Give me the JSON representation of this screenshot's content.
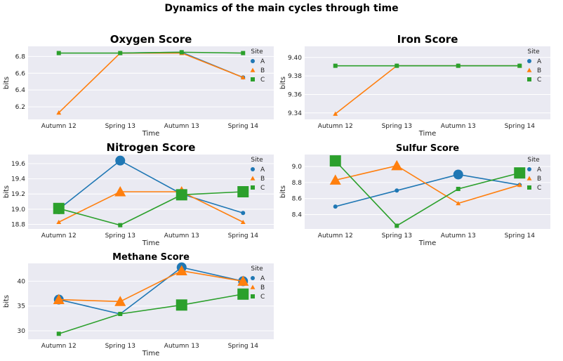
{
  "figure_title": "Dynamics of the main cycles through time",
  "colors": {
    "A": "#1f77b4",
    "B": "#ff7f0e",
    "C": "#2ca02c",
    "panel_bg": "#eaeaf2",
    "grid": "#ffffff"
  },
  "legend_title": "Site",
  "chart_data": [
    {
      "type": "line",
      "title": "Oxygen Score",
      "xlabel": "Time",
      "ylabel": "bits",
      "categories": [
        "Autumn 12",
        "Spring 13",
        "Autumn 13",
        "Spring 14"
      ],
      "ylim": [
        6.05,
        6.92
      ],
      "yticks": [
        6.2,
        6.4,
        6.6,
        6.8
      ],
      "yticklabels": [
        "6.2",
        "6.4",
        "6.6",
        "6.8"
      ],
      "legend": {
        "title": "Site",
        "entries": [
          "A",
          "B",
          "C"
        ],
        "placement": "right"
      },
      "series": [
        {
          "name": "A",
          "values": [
            null,
            6.84,
            6.85,
            6.55
          ],
          "sizes": [
            0,
            3,
            3,
            3
          ]
        },
        {
          "name": "B",
          "values": [
            6.13,
            6.84,
            6.84,
            6.55
          ],
          "sizes": [
            3,
            3,
            3,
            3
          ]
        },
        {
          "name": "C",
          "values": [
            6.84,
            6.84,
            6.85,
            6.84
          ],
          "sizes": [
            3,
            3,
            3,
            3
          ]
        }
      ]
    },
    {
      "type": "line",
      "title": "Iron Score",
      "xlabel": "Time",
      "ylabel": "bits",
      "categories": [
        "Autumn 12",
        "Spring 13",
        "Autumn 13",
        "Spring 14"
      ],
      "ylim": [
        9.333,
        9.412
      ],
      "yticks": [
        9.34,
        9.36,
        9.38,
        9.4
      ],
      "yticklabels": [
        "9.34",
        "9.36",
        "9.38",
        "9.40"
      ],
      "legend": {
        "title": "Site",
        "entries": [
          "A",
          "B",
          "C"
        ],
        "placement": "right"
      },
      "series": [
        {
          "name": "A",
          "values": [
            null,
            9.391,
            9.391,
            9.391
          ],
          "sizes": [
            0,
            3,
            3,
            3
          ]
        },
        {
          "name": "B",
          "values": [
            9.339,
            9.391,
            9.391,
            9.391
          ],
          "sizes": [
            3,
            3,
            3,
            3
          ]
        },
        {
          "name": "C",
          "values": [
            9.391,
            9.391,
            9.391,
            9.391
          ],
          "sizes": [
            3,
            3,
            3,
            3
          ]
        }
      ]
    },
    {
      "type": "line",
      "title": "Nitrogen Score",
      "xlabel": "Time",
      "ylabel": "bits",
      "categories": [
        "Autumn 12",
        "Spring 13",
        "Autumn 13",
        "Spring 14"
      ],
      "ylim": [
        18.74,
        19.72
      ],
      "yticks": [
        18.8,
        19.0,
        19.2,
        19.4,
        19.6
      ],
      "yticklabels": [
        "18.8",
        "19.0",
        "19.2",
        "19.4",
        "19.6"
      ],
      "legend": {
        "title": "Site",
        "entries": [
          "A",
          "B",
          "C"
        ],
        "placement": "right"
      },
      "series": [
        {
          "name": "A",
          "values": [
            19.0,
            19.64,
            19.2,
            18.95
          ],
          "sizes": [
            7,
            7,
            7,
            3
          ]
        },
        {
          "name": "B",
          "values": [
            18.83,
            19.23,
            19.23,
            18.83
          ],
          "sizes": [
            3,
            7,
            7,
            3
          ]
        },
        {
          "name": "C",
          "values": [
            19.01,
            18.79,
            19.19,
            19.23
          ],
          "sizes": [
            8,
            3,
            8,
            8
          ]
        }
      ]
    },
    {
      "type": "line",
      "title": "Sulfur Score",
      "xlabel": "Time",
      "ylabel": "bits",
      "categories": [
        "Autumn 12",
        "Spring 13",
        "Autumn 13",
        "Spring 14"
      ],
      "ylim": [
        8.22,
        9.15
      ],
      "yticks": [
        8.4,
        8.6,
        8.8,
        9.0
      ],
      "yticklabels": [
        "8.4",
        "8.6",
        "8.8",
        "9.0"
      ],
      "legend": {
        "title": "Site",
        "entries": [
          "A",
          "B",
          "C"
        ],
        "placement": "right"
      },
      "series": [
        {
          "name": "A",
          "values": [
            8.5,
            8.7,
            8.9,
            8.77
          ],
          "sizes": [
            3,
            3,
            7,
            3
          ]
        },
        {
          "name": "B",
          "values": [
            8.83,
            9.01,
            8.54,
            8.77
          ],
          "sizes": [
            7,
            7,
            3,
            3
          ]
        },
        {
          "name": "C",
          "values": [
            9.07,
            8.26,
            8.72,
            8.92
          ],
          "sizes": [
            8,
            3,
            3,
            8
          ]
        }
      ]
    },
    {
      "type": "line",
      "title": "Methane Score",
      "xlabel": "Time",
      "ylabel": "bits",
      "categories": [
        "Autumn 12",
        "Spring 13",
        "Autumn 13",
        "Spring 14"
      ],
      "ylim": [
        28.3,
        43.6
      ],
      "yticks": [
        30,
        35,
        40
      ],
      "yticklabels": [
        "30",
        "35",
        "40"
      ],
      "legend": {
        "title": "Site",
        "entries": [
          "A",
          "B",
          "C"
        ],
        "placement": "right"
      },
      "series": [
        {
          "name": "A",
          "values": [
            36.3,
            33.4,
            42.8,
            40.0
          ],
          "sizes": [
            7,
            3,
            7,
            7
          ]
        },
        {
          "name": "B",
          "values": [
            36.3,
            35.9,
            42.1,
            40.0
          ],
          "sizes": [
            7,
            7,
            7,
            7
          ]
        },
        {
          "name": "C",
          "values": [
            29.4,
            33.4,
            35.2,
            37.4
          ],
          "sizes": [
            3,
            3,
            8,
            8
          ]
        }
      ]
    }
  ]
}
